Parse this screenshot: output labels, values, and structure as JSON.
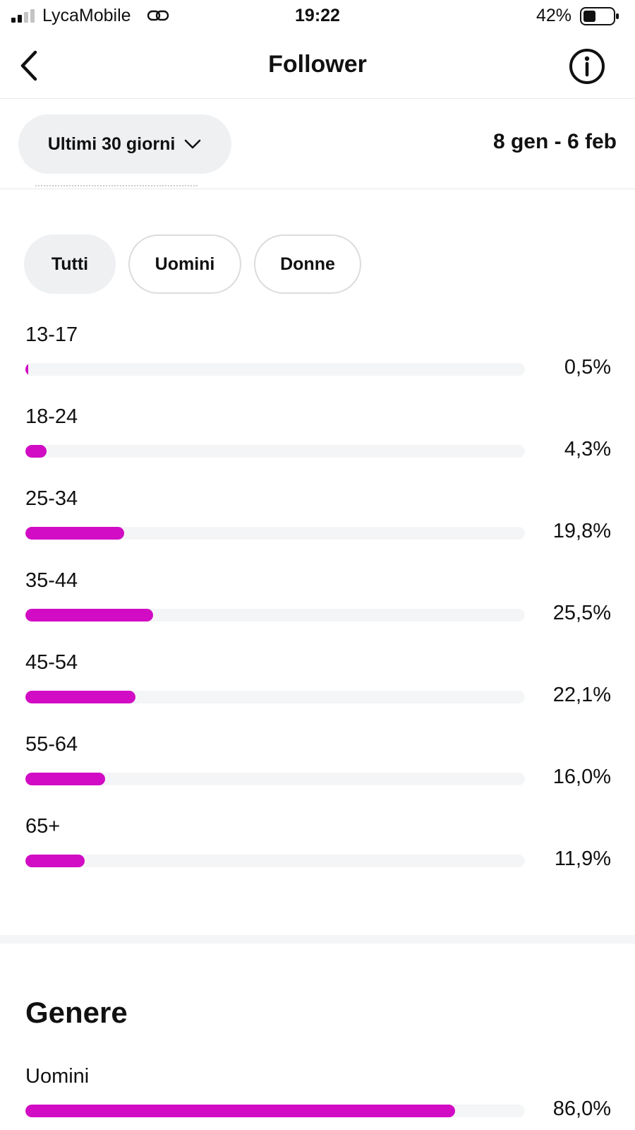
{
  "status_bar": {
    "carrier": "LycaMobile",
    "time": "19:22",
    "battery": "42%"
  },
  "nav": {
    "title": "Follower",
    "back_icon": "chevron-left-icon",
    "info_icon": "info-circle-icon"
  },
  "filter": {
    "range_label": "Ultimi 30 giorni",
    "date_range": "8 gen - 6 feb"
  },
  "tabs": [
    {
      "label": "Tutti",
      "active": true
    },
    {
      "label": "Uomini",
      "active": false
    },
    {
      "label": "Donne",
      "active": false
    }
  ],
  "bar_color": "#d10cc4",
  "age_groups": [
    {
      "label": "13-17",
      "percent_text": "0,5%",
      "fraction": 0.005
    },
    {
      "label": "18-24",
      "percent_text": "4,3%",
      "fraction": 0.043
    },
    {
      "label": "25-34",
      "percent_text": "19,8%",
      "fraction": 0.198
    },
    {
      "label": "35-44",
      "percent_text": "25,5%",
      "fraction": 0.255
    },
    {
      "label": "45-54",
      "percent_text": "22,1%",
      "fraction": 0.221
    },
    {
      "label": "55-64",
      "percent_text": "16,0%",
      "fraction": 0.16
    },
    {
      "label": "65+",
      "percent_text": "11,9%",
      "fraction": 0.119
    }
  ],
  "gender": {
    "title": "Genere",
    "items": [
      {
        "label": "Uomini",
        "percent_text": "86,0%",
        "fraction": 0.86
      }
    ]
  }
}
